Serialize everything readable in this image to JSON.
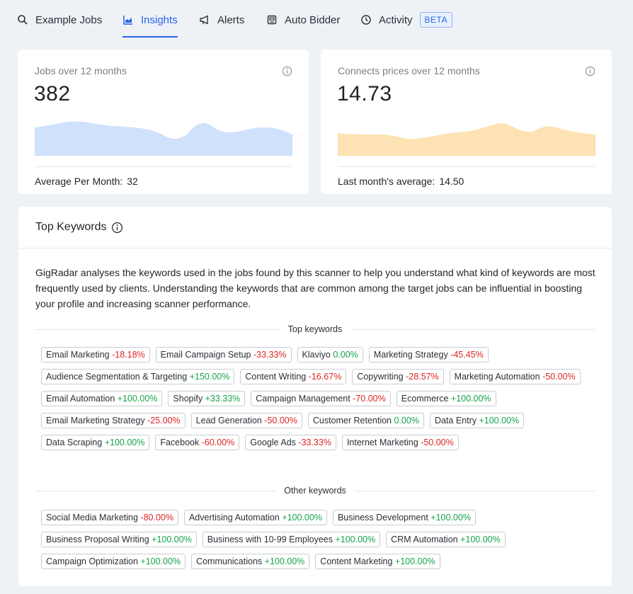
{
  "tabs": [
    {
      "label": "Example Jobs",
      "icon": "search-icon",
      "active": false
    },
    {
      "label": "Insights",
      "icon": "chart-icon",
      "active": true
    },
    {
      "label": "Alerts",
      "icon": "megaphone-icon",
      "active": false
    },
    {
      "label": "Auto Bidder",
      "icon": "robot-icon",
      "active": false
    },
    {
      "label": "Activity",
      "icon": "clock-icon",
      "active": false,
      "badge": "BETA"
    }
  ],
  "jobs_card": {
    "title": "Jobs over 12 months",
    "value": "382",
    "footer_label": "Average Per Month:",
    "footer_value": "32",
    "color": "#cfe1fb"
  },
  "connects_card": {
    "title": "Connects prices over 12 months",
    "value": "14.73",
    "footer_label": "Last month's average:",
    "footer_value": "14.50",
    "color": "#fde2b3"
  },
  "keywords": {
    "title": "Top Keywords",
    "description": "GigRadar analyses the keywords used in the jobs found by this scanner to help you understand what kind of keywords are most frequently used by clients. Understanding the keywords that are common among the target jobs can be influential in boosting your profile and increasing scanner performance.",
    "top_label": "Top keywords",
    "top": [
      {
        "name": "Email Marketing",
        "change": "-18.18%"
      },
      {
        "name": "Email Campaign Setup",
        "change": "-33.33%"
      },
      {
        "name": "Klaviyo",
        "change": "0.00%"
      },
      {
        "name": "Marketing Strategy",
        "change": "-45.45%"
      },
      {
        "name": "Audience Segmentation & Targeting",
        "change": "+150.00%"
      },
      {
        "name": "Content Writing",
        "change": "-16.67%"
      },
      {
        "name": "Copywriting",
        "change": "-28.57%"
      },
      {
        "name": "Marketing Automation",
        "change": "-50.00%"
      },
      {
        "name": "Email Automation",
        "change": "+100.00%"
      },
      {
        "name": "Shopify",
        "change": "+33.33%"
      },
      {
        "name": "Campaign Management",
        "change": "-70.00%"
      },
      {
        "name": "Ecommerce",
        "change": "+100.00%"
      },
      {
        "name": "Email Marketing Strategy",
        "change": "-25.00%"
      },
      {
        "name": "Lead Generation",
        "change": "-50.00%"
      },
      {
        "name": "Customer Retention",
        "change": "0.00%"
      },
      {
        "name": "Data Entry",
        "change": "+100.00%"
      },
      {
        "name": "Data Scraping",
        "change": "+100.00%"
      },
      {
        "name": "Facebook",
        "change": "-60.00%"
      },
      {
        "name": "Google Ads",
        "change": "-33.33%"
      },
      {
        "name": "Internet Marketing",
        "change": "-50.00%"
      }
    ],
    "other_label": "Other keywords",
    "other": [
      {
        "name": "Social Media Marketing",
        "change": "-80.00%"
      },
      {
        "name": "Advertising Automation",
        "change": "+100.00%"
      },
      {
        "name": "Business Development",
        "change": "+100.00%"
      },
      {
        "name": "Business Proposal Writing",
        "change": "+100.00%"
      },
      {
        "name": "Business with 10-99 Employees",
        "change": "+100.00%"
      },
      {
        "name": "CRM Automation",
        "change": "+100.00%"
      },
      {
        "name": "Campaign Optimization",
        "change": "+100.00%"
      },
      {
        "name": "Communications",
        "change": "+100.00%"
      },
      {
        "name": "Content Marketing",
        "change": "+100.00%"
      }
    ]
  }
}
